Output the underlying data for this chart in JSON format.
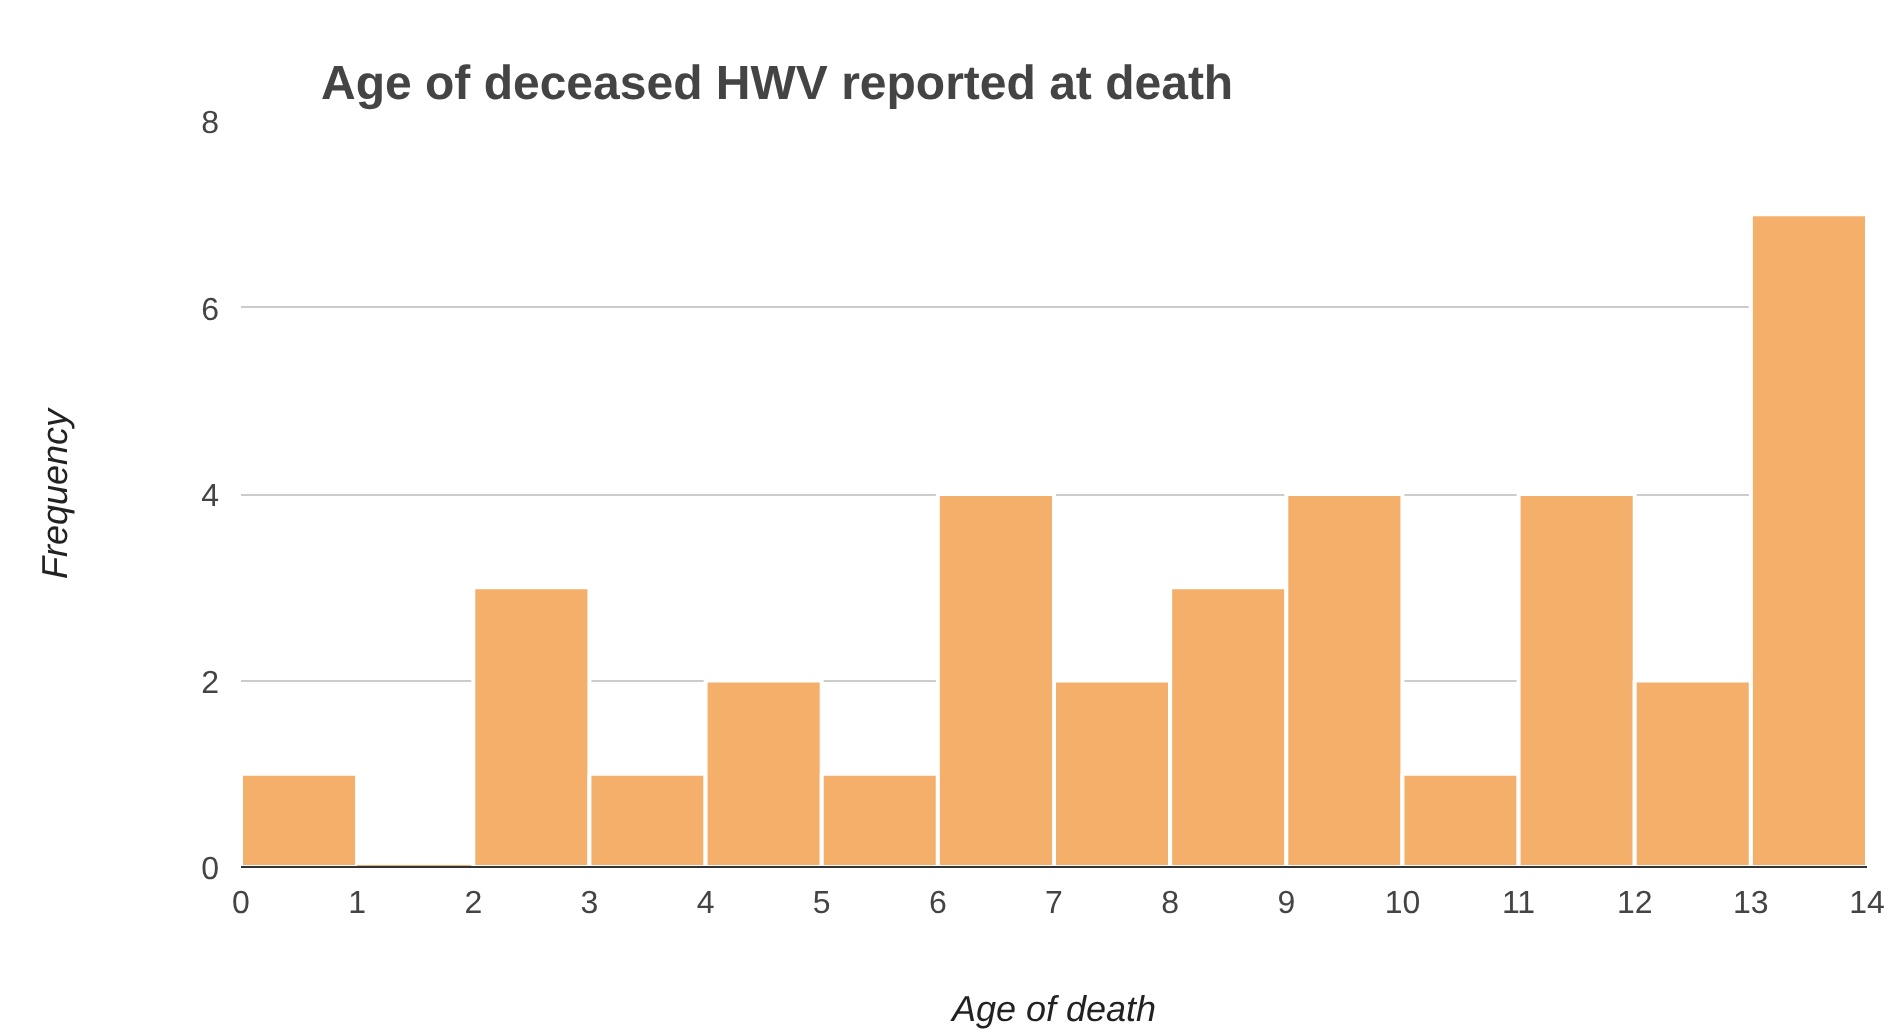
{
  "chart_data": {
    "type": "histogram",
    "title": "Age of deceased HWV reported at death",
    "xlabel": "Age of death",
    "ylabel": "Frequency",
    "bins": [
      0,
      1,
      2,
      3,
      4,
      5,
      6,
      7,
      8,
      9,
      10,
      11,
      12,
      13,
      14
    ],
    "values": [
      1,
      0,
      3,
      1,
      2,
      1,
      4,
      2,
      3,
      4,
      1,
      4,
      2,
      7
    ],
    "color": "#f4b06a",
    "xlim": [
      0,
      14
    ],
    "xticks": [
      0,
      1,
      2,
      3,
      4,
      5,
      6,
      7,
      8,
      9,
      10,
      11,
      12,
      13,
      14
    ],
    "ylim": [
      0,
      8
    ],
    "yticks": [
      0,
      2,
      4,
      6,
      8
    ],
    "grid": "y"
  }
}
